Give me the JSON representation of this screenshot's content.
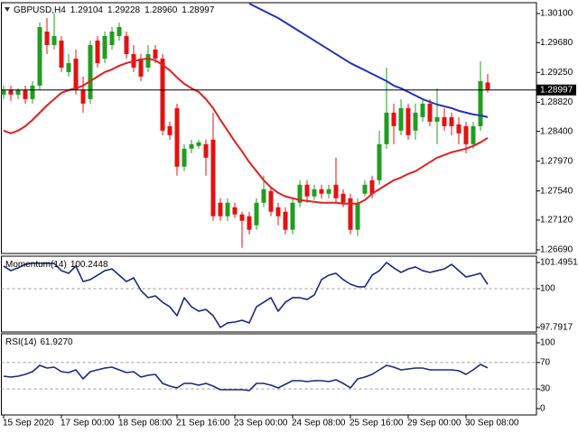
{
  "chart_data": [
    {
      "type": "candlestick",
      "symbol": "GBPUSD,H4",
      "quote_labels": [
        "1.29104",
        "1.29228",
        "1.28960",
        "1.28997"
      ],
      "categories": [
        "15 Sep 2020",
        null,
        null,
        null,
        null,
        null,
        null,
        null,
        "17 Sep 00:00",
        null,
        null,
        null,
        null,
        null,
        null,
        null,
        "18 Sep 08:00",
        null,
        null,
        null,
        null,
        null,
        null,
        null,
        "21 Sep 16:00",
        null,
        null,
        null,
        null,
        null,
        null,
        null,
        "23 Sep 00:00",
        null,
        null,
        null,
        null,
        null,
        null,
        null,
        "24 Sep 08:00",
        null,
        null,
        null,
        null,
        null,
        null,
        null,
        "25 Sep 16:00",
        null,
        null,
        null,
        null,
        null,
        null,
        null,
        "29 Sep 00:00",
        null,
        null,
        null,
        null,
        null,
        null,
        null,
        "30 Sep 08:00",
        null,
        null,
        null
      ],
      "open": [
        1.2893,
        1.28995,
        1.2893,
        1.28995,
        1.28865,
        1.2906,
        1.2984,
        1.29645,
        1.2971,
        1.29255,
        1.2945,
        1.28995,
        1.28865,
        1.2971,
        1.2945,
        1.29645,
        1.29775,
        1.29775,
        1.29515,
        1.2945,
        1.2932,
        1.2958,
        1.2945,
        1.28475,
        1.28735,
        1.2789,
        1.2815,
        1.28189,
        1.28215,
        1.2828,
        1.2737,
        1.27175,
        1.27305,
        1.27201,
        1.27175,
        1.27045,
        1.2737,
        1.27539,
        1.27305,
        1.2724,
        1.2698,
        1.2737,
        1.2763,
        1.27461,
        1.27565,
        1.275,
        1.2763,
        1.275,
        1.27435,
        1.2698,
        1.275,
        1.27695,
        1.27695,
        1.28215,
        1.2867,
        1.2841,
        1.28735,
        1.2841,
        1.28605,
        1.288,
        1.2854,
        1.28605,
        1.28605,
        1.28501,
        1.28475,
        1.28215,
        1.28475,
        1.29104
      ],
      "high": [
        1.2906,
        1.2906,
        1.29021,
        1.2906,
        1.29125,
        1.2997,
        1.30035,
        1.301,
        1.29775,
        1.29515,
        1.2958,
        1.2919,
        1.2971,
        1.29775,
        1.2984,
        1.29905,
        1.2997,
        1.2984,
        1.29645,
        1.29515,
        1.29645,
        1.29645,
        1.29515,
        1.2854,
        1.288,
        1.28215,
        1.2828,
        1.2828,
        1.2828,
        1.2867,
        1.27435,
        1.27435,
        1.2737,
        1.2724,
        1.2724,
        1.27435,
        1.2776,
        1.27591,
        1.2737,
        1.27305,
        1.27435,
        1.27695,
        1.27695,
        1.2763,
        1.2763,
        1.2763,
        1.2802,
        1.27565,
        1.275,
        1.27435,
        1.27695,
        1.2776,
        1.2841,
        1.2932,
        1.288,
        1.28865,
        1.288,
        1.288,
        1.28865,
        1.28865,
        1.29021,
        1.28735,
        1.2867,
        1.28605,
        1.2854,
        1.2854,
        1.29411,
        1.29228
      ],
      "low": [
        1.28865,
        1.28839,
        1.28865,
        1.288,
        1.288,
        1.28995,
        1.29515,
        1.2958,
        1.29255,
        1.2919,
        1.2893,
        1.2867,
        1.288,
        1.2932,
        1.29385,
        1.2958,
        1.2971,
        1.2945,
        1.29255,
        1.29125,
        1.29255,
        1.29385,
        1.28345,
        1.2828,
        1.2776,
        1.27825,
        1.28085,
        1.2815,
        1.2776,
        1.2711,
        1.2711,
        1.2711,
        1.27149,
        1.2672,
        1.26915,
        1.2698,
        1.27305,
        1.27175,
        1.27045,
        1.26915,
        1.26915,
        1.27305,
        1.2737,
        1.27409,
        1.27435,
        1.27435,
        1.2737,
        1.27305,
        1.26915,
        1.26889,
        1.27461,
        1.27435,
        1.2763,
        1.2815,
        1.28215,
        1.28345,
        1.2828,
        1.2828,
        1.2854,
        1.28475,
        1.28215,
        1.2841,
        1.28345,
        1.28215,
        1.28085,
        1.2815,
        1.2841,
        1.2896
      ],
      "close": [
        1.28995,
        1.2893,
        1.28995,
        1.28865,
        1.2906,
        1.29905,
        1.29645,
        1.29775,
        1.2932,
        1.29385,
        1.28995,
        1.288,
        1.29645,
        1.29385,
        1.29775,
        1.2984,
        1.29905,
        1.29515,
        1.2932,
        1.2919,
        1.29515,
        1.2945,
        1.2841,
        1.28345,
        1.2789,
        1.2815,
        1.28215,
        1.28241,
        1.2802,
        1.27175,
        1.27175,
        1.2737,
        1.27201,
        1.2711,
        1.2698,
        1.2737,
        1.27565,
        1.2724,
        1.27175,
        1.2698,
        1.2737,
        1.2763,
        1.27461,
        1.27565,
        1.275,
        1.27565,
        1.27435,
        1.2737,
        1.2698,
        1.2737,
        1.2763,
        1.275,
        1.28215,
        1.2867,
        1.28475,
        1.28735,
        1.28345,
        1.2867,
        1.288,
        1.2854,
        1.28605,
        1.28475,
        1.28475,
        1.28371,
        1.28215,
        1.28475,
        1.29125,
        1.28997
      ],
      "up_color": "#229c22",
      "down_color": "#e41111",
      "lines": [
        {
          "color": "#e02020",
          "values": [
            1.2841,
            1.28371,
            1.2841,
            1.28475,
            1.28566,
            1.2867,
            1.28774,
            1.28865,
            1.28956,
            1.28995,
            1.29021,
            1.2906,
            1.29125,
            1.2919,
            1.29255,
            1.29294,
            1.29346,
            1.29385,
            1.29411,
            1.29437,
            1.2945,
            1.29424,
            1.29359,
            1.29281,
            1.29177,
            1.29086,
            1.29021,
            1.28969,
            1.28865,
            1.28735,
            1.28566,
            1.2841,
            1.28254,
            1.28111,
            1.27955,
            1.27825,
            1.27695,
            1.27591,
            1.27513,
            1.27461,
            1.27435,
            1.27409,
            1.27396,
            1.27383,
            1.2737,
            1.2737,
            1.2737,
            1.27357,
            1.27357,
            1.27357,
            1.27409,
            1.275,
            1.27565,
            1.2763,
            1.27695,
            1.27734,
            1.27786,
            1.27825,
            1.2789,
            1.27955,
            1.2802,
            1.28059,
            1.28098,
            1.28124,
            1.2815,
            1.28189,
            1.28241,
            1.28306
          ]
        },
        {
          "color": "#2233bb",
          "values": [
            null,
            null,
            null,
            null,
            null,
            null,
            null,
            null,
            null,
            null,
            null,
            null,
            null,
            null,
            null,
            null,
            null,
            null,
            null,
            null,
            null,
            null,
            null,
            null,
            null,
            null,
            null,
            null,
            null,
            null,
            null,
            null,
            null,
            null,
            1.30243,
            1.30191,
            1.30139,
            1.30087,
            1.30035,
            1.2997,
            1.29905,
            1.2984,
            1.29775,
            1.2971,
            1.29645,
            1.2958,
            1.29515,
            1.2945,
            1.29385,
            1.29333,
            1.29281,
            1.29229,
            1.29177,
            1.29125,
            1.2906,
            1.29021,
            1.28969,
            1.28917,
            1.28865,
            1.28826,
            1.28787,
            1.28761,
            1.28735,
            1.28696,
            1.2867,
            1.28644,
            1.28631,
            1.28605
          ]
        }
      ],
      "price_line": true,
      "ylim": [
        1.26638,
        1.30256
      ],
      "yticks": [
        {
          "value": 1.301,
          "label": "1.30100"
        },
        {
          "value": 1.2968,
          "label": "1.29680"
        },
        {
          "value": 1.2925,
          "label": "1.29250"
        },
        {
          "value": 1.2882,
          "label": "1.28820"
        },
        {
          "value": 1.284,
          "label": "1.28400"
        },
        {
          "value": 1.2797,
          "label": "1.27970"
        },
        {
          "value": 1.2754,
          "label": "1.27540"
        },
        {
          "value": 1.2712,
          "label": "1.27120"
        },
        {
          "value": 1.2669,
          "label": "1.26690"
        }
      ]
    },
    {
      "type": "line",
      "name": "Momentum(14)",
      "color": "#1a2a80",
      "values": [
        101.29,
        101.03,
        101.19,
        101.39,
        101.45,
        101.45,
        101.45,
        101.44,
        101.03,
        100.88,
        101.29,
        100.41,
        100.52,
        100.77,
        101.03,
        101.13,
        100.77,
        100.41,
        100.62,
        99.9,
        99.49,
        99.59,
        99.23,
        98.97,
        98.46,
        99.49,
        98.97,
        98.72,
        98.82,
        98.46,
        97.7917,
        98.05,
        98.1,
        98.2,
        98.05,
        98.97,
        99.23,
        99.49,
        98.72,
        99.23,
        99.49,
        99.49,
        99.39,
        99.64,
        100.52,
        100.77,
        100.88,
        100.52,
        100.26,
        100.11,
        100.11,
        100.77,
        101.03,
        101.4951,
        101.19,
        100.93,
        101.13,
        101.24,
        101.03,
        100.93,
        101.03,
        101.13,
        101.39,
        101.03,
        100.67,
        100.77,
        100.88,
        100.2448
      ],
      "levels": [
        100
      ],
      "ylim": [
        97.534,
        101.855
      ],
      "yticks": [
        101.4951,
        100,
        97.7917
      ]
    },
    {
      "type": "line",
      "name": "RSI(14)",
      "value_label": "61.9270",
      "color": "#1a2a80",
      "values": [
        49.31,
        47.94,
        49.31,
        52.05,
        56.16,
        65.75,
        61.64,
        63.01,
        56.16,
        54.79,
        58.9,
        45.2,
        56.16,
        58.9,
        61.64,
        63.01,
        58.9,
        54.79,
        56.16,
        47.94,
        50.68,
        52.05,
        38.35,
        34.24,
        31.51,
        38.35,
        38.35,
        35.61,
        38.35,
        34.24,
        28.77,
        28.77,
        28.77,
        28.77,
        27.4,
        38.35,
        38.35,
        35.61,
        31.51,
        36.98,
        42.46,
        42.46,
        41.09,
        42.46,
        42.46,
        41.09,
        43.83,
        38.35,
        31.51,
        45.2,
        47.94,
        52.05,
        58.9,
        65.75,
        63.01,
        58.9,
        60.27,
        61.64,
        61.64,
        58.9,
        58.9,
        58.9,
        58.9,
        57.53,
        52.05,
        58.9,
        67.12,
        61.927
      ],
      "levels": [
        70,
        30
      ],
      "ylim": [
        -9.6,
        113.7
      ],
      "yticks": [
        100,
        70,
        30,
        0
      ]
    }
  ]
}
